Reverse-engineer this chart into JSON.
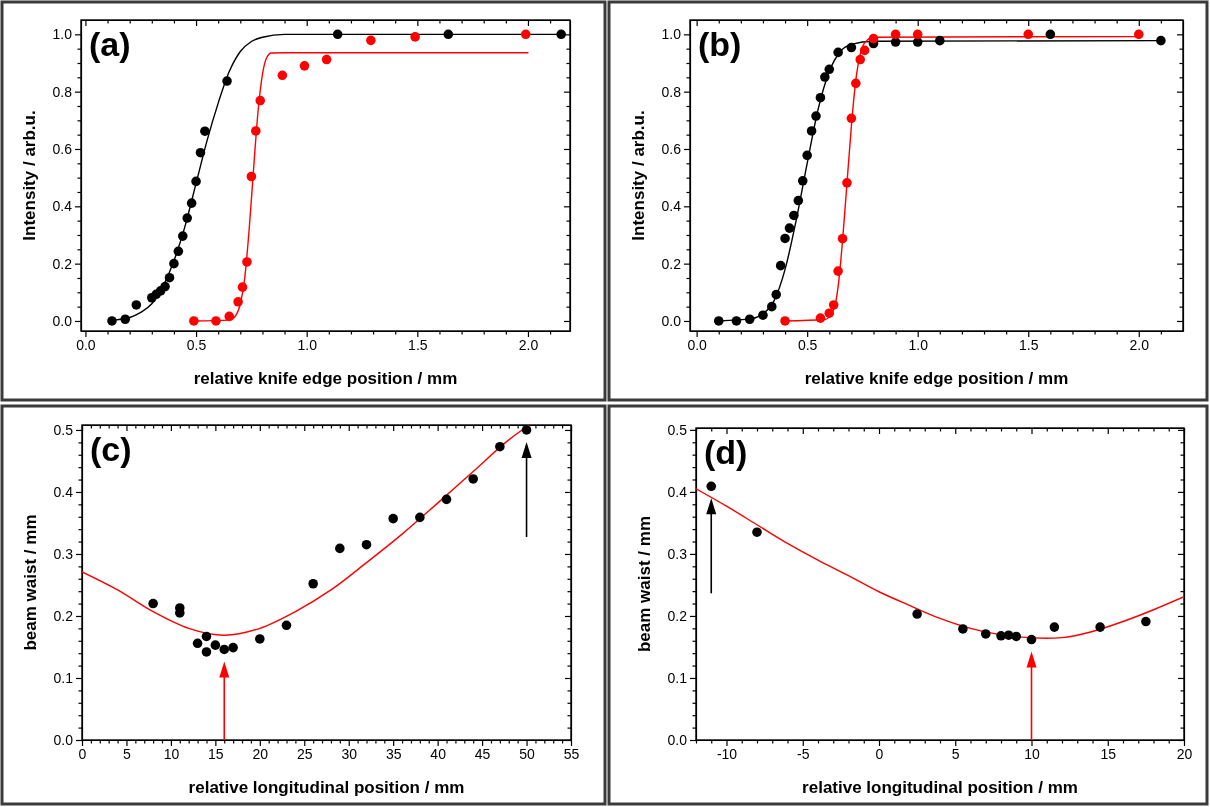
{
  "chart_data": [
    {
      "type": "scatter",
      "title": "(a)",
      "xlabel": "relative knife edge position / mm",
      "ylabel": "Intensity / arb.u.",
      "xlim": [
        -0.02,
        2.19
      ],
      "ylim": [
        -0.035,
        1.05
      ],
      "xticks": [
        {
          "value": 0,
          "label": "0.0"
        },
        {
          "value": 0.1,
          "label": null
        },
        {
          "value": 0.2,
          "label": null
        },
        {
          "value": 0.3,
          "label": null
        },
        {
          "value": 0.4,
          "label": null
        },
        {
          "value": 0.5,
          "label": "0.5"
        },
        {
          "value": 0.6,
          "label": null
        },
        {
          "value": 0.7,
          "label": null
        },
        {
          "value": 0.8,
          "label": null
        },
        {
          "value": 0.9,
          "label": null
        },
        {
          "value": 1.0,
          "label": "1.0"
        },
        {
          "value": 1.1,
          "label": null
        },
        {
          "value": 1.2,
          "label": null
        },
        {
          "value": 1.3,
          "label": null
        },
        {
          "value": 1.4,
          "label": null
        },
        {
          "value": 1.5,
          "label": "1.5"
        },
        {
          "value": 1.6,
          "label": null
        },
        {
          "value": 1.7,
          "label": null
        },
        {
          "value": 1.8,
          "label": null
        },
        {
          "value": 1.9,
          "label": null
        },
        {
          "value": 2.0,
          "label": "2.0"
        },
        {
          "value": 2.1,
          "label": null
        }
      ],
      "yticks": [
        {
          "value": 0,
          "label": "0.0"
        },
        {
          "value": 0.05,
          "label": null
        },
        {
          "value": 0.1,
          "label": null
        },
        {
          "value": 0.15,
          "label": null
        },
        {
          "value": 0.2,
          "label": "0.2"
        },
        {
          "value": 0.25,
          "label": null
        },
        {
          "value": 0.3,
          "label": null
        },
        {
          "value": 0.35,
          "label": null
        },
        {
          "value": 0.4,
          "label": "0.4"
        },
        {
          "value": 0.45,
          "label": null
        },
        {
          "value": 0.5,
          "label": null
        },
        {
          "value": 0.55,
          "label": null
        },
        {
          "value": 0.6,
          "label": "0.6"
        },
        {
          "value": 0.65,
          "label": null
        },
        {
          "value": 0.7,
          "label": null
        },
        {
          "value": 0.75,
          "label": null
        },
        {
          "value": 0.8,
          "label": "0.8"
        },
        {
          "value": 0.85,
          "label": null
        },
        {
          "value": 0.9,
          "label": null
        },
        {
          "value": 0.95,
          "label": null
        },
        {
          "value": 1.0,
          "label": "1.0"
        }
      ],
      "series": [
        {
          "type": "line",
          "color": "#000000",
          "x": [
            0.13,
            0.2,
            0.25,
            0.3,
            0.35,
            0.4,
            0.45,
            0.5,
            0.55,
            0.6,
            0.65,
            0.7,
            0.75,
            0.8,
            0.9,
            2.15
          ],
          "values": [
            0.003,
            0.012,
            0.03,
            0.06,
            0.12,
            0.21,
            0.33,
            0.48,
            0.63,
            0.76,
            0.87,
            0.94,
            0.975,
            0.99,
            1.0,
            1.0
          ]
        },
        {
          "type": "line",
          "color": "#ff0000",
          "x": [
            0.49,
            0.65,
            0.68,
            0.7,
            0.72,
            0.74,
            0.76,
            0.78,
            0.8,
            0.82,
            0.84,
            0.9,
            2.0
          ],
          "values": [
            0.0,
            0.003,
            0.02,
            0.06,
            0.15,
            0.32,
            0.53,
            0.73,
            0.86,
            0.92,
            0.935,
            0.936,
            0.936
          ]
        },
        {
          "marker": "circle",
          "color": "#000000",
          "x": [
            0.12,
            0.18,
            0.23,
            0.3,
            0.32,
            0.34,
            0.36,
            0.38,
            0.4,
            0.42,
            0.44,
            0.46,
            0.48,
            0.5,
            0.52,
            0.54,
            0.64,
            1.14,
            1.64,
            2.15
          ],
          "values": [
            0.0,
            0.006,
            0.056,
            0.081,
            0.093,
            0.105,
            0.12,
            0.151,
            0.2,
            0.243,
            0.296,
            0.359,
            0.411,
            0.487,
            0.587,
            0.662,
            0.837,
            1.0,
            1.0,
            1.0
          ]
        },
        {
          "marker": "circle",
          "color": "#ff0000",
          "x": [
            0.49,
            0.59,
            0.65,
            0.69,
            0.71,
            0.73,
            0.75,
            0.77,
            0.79,
            0.89,
            0.99,
            1.09,
            1.29,
            1.49,
            1.99
          ],
          "values": [
            0.0,
            0.0,
            0.016,
            0.067,
            0.118,
            0.206,
            0.504,
            0.663,
            0.769,
            0.857,
            0.89,
            0.912,
            0.979,
            0.991,
            1.0
          ]
        }
      ]
    },
    {
      "type": "scatter",
      "title": "(b)",
      "xlabel": "relative knife edge position / mm",
      "ylabel": "Intensity / arb.u.",
      "xlim": [
        -0.03,
        2.2
      ],
      "ylim": [
        -0.035,
        1.05
      ],
      "xticks": [
        {
          "value": 0,
          "label": "0.0"
        },
        {
          "value": 0.1,
          "label": null
        },
        {
          "value": 0.2,
          "label": null
        },
        {
          "value": 0.3,
          "label": null
        },
        {
          "value": 0.4,
          "label": null
        },
        {
          "value": 0.5,
          "label": "0.5"
        },
        {
          "value": 0.6,
          "label": null
        },
        {
          "value": 0.7,
          "label": null
        },
        {
          "value": 0.8,
          "label": null
        },
        {
          "value": 0.9,
          "label": null
        },
        {
          "value": 1.0,
          "label": "1.0"
        },
        {
          "value": 1.1,
          "label": null
        },
        {
          "value": 1.2,
          "label": null
        },
        {
          "value": 1.3,
          "label": null
        },
        {
          "value": 1.4,
          "label": null
        },
        {
          "value": 1.5,
          "label": "1.5"
        },
        {
          "value": 1.6,
          "label": null
        },
        {
          "value": 1.7,
          "label": null
        },
        {
          "value": 1.8,
          "label": null
        },
        {
          "value": 1.9,
          "label": null
        },
        {
          "value": 2.0,
          "label": "2.0"
        },
        {
          "value": 2.1,
          "label": null
        }
      ],
      "yticks": [
        {
          "value": 0,
          "label": "0.0"
        },
        {
          "value": 0.05,
          "label": null
        },
        {
          "value": 0.1,
          "label": null
        },
        {
          "value": 0.15,
          "label": null
        },
        {
          "value": 0.2,
          "label": "0.2"
        },
        {
          "value": 0.25,
          "label": null
        },
        {
          "value": 0.3,
          "label": null
        },
        {
          "value": 0.35,
          "label": null
        },
        {
          "value": 0.4,
          "label": "0.4"
        },
        {
          "value": 0.45,
          "label": null
        },
        {
          "value": 0.5,
          "label": null
        },
        {
          "value": 0.55,
          "label": null
        },
        {
          "value": 0.6,
          "label": "0.6"
        },
        {
          "value": 0.65,
          "label": null
        },
        {
          "value": 0.7,
          "label": null
        },
        {
          "value": 0.75,
          "label": null
        },
        {
          "value": 0.8,
          "label": "0.8"
        },
        {
          "value": 0.85,
          "label": null
        },
        {
          "value": 0.9,
          "label": null
        },
        {
          "value": 0.95,
          "label": null
        },
        {
          "value": 1.0,
          "label": "1.0"
        }
      ],
      "series": [
        {
          "type": "line",
          "color": "#000000",
          "x": [
            0.1,
            0.25,
            0.3,
            0.35,
            0.4,
            0.45,
            0.5,
            0.55,
            0.6,
            0.65,
            0.7,
            0.8,
            2.1
          ],
          "values": [
            0.0,
            0.008,
            0.025,
            0.07,
            0.18,
            0.35,
            0.55,
            0.74,
            0.87,
            0.94,
            0.965,
            0.976,
            0.978
          ]
        },
        {
          "type": "line",
          "color": "#ff0000",
          "x": [
            0.4,
            0.58,
            0.62,
            0.64,
            0.66,
            0.68,
            0.7,
            0.72,
            0.74,
            0.76,
            0.8,
            2.0
          ],
          "values": [
            0.0,
            0.005,
            0.04,
            0.12,
            0.28,
            0.48,
            0.68,
            0.84,
            0.93,
            0.97,
            0.99,
            0.992
          ]
        },
        {
          "marker": "circle",
          "color": "#000000",
          "x": [
            0.1,
            0.18,
            0.24,
            0.3,
            0.34,
            0.36,
            0.38,
            0.4,
            0.42,
            0.44,
            0.46,
            0.48,
            0.5,
            0.52,
            0.54,
            0.56,
            0.58,
            0.6,
            0.64,
            0.7,
            0.8,
            0.9,
            1.0,
            1.1,
            1.6,
            2.1
          ],
          "values": [
            0.0,
            0.0,
            0.006,
            0.02,
            0.05,
            0.092,
            0.193,
            0.288,
            0.324,
            0.368,
            0.42,
            0.489,
            0.578,
            0.663,
            0.715,
            0.779,
            0.851,
            0.878,
            0.937,
            0.954,
            0.968,
            0.973,
            0.973,
            0.978,
            1.0,
            0.978
          ]
        },
        {
          "marker": "circle",
          "color": "#ff0000",
          "x": [
            0.4,
            0.56,
            0.6,
            0.62,
            0.64,
            0.66,
            0.68,
            0.7,
            0.72,
            0.74,
            0.76,
            0.8,
            0.9,
            1.0,
            1.5,
            2.0
          ],
          "values": [
            0.0,
            0.01,
            0.027,
            0.056,
            0.174,
            0.287,
            0.482,
            0.707,
            0.829,
            0.912,
            0.944,
            0.985,
            1.0,
            1.0,
            1.0,
            1.0
          ]
        }
      ]
    },
    {
      "type": "scatter",
      "title": "(c)",
      "xlabel": "relative longitudinal position / mm",
      "ylabel": "beam waist / mm",
      "xlim": [
        0,
        55
      ],
      "ylim": [
        0,
        0.508
      ],
      "xticks": [
        {
          "value": 0,
          "label": "0"
        },
        {
          "value": 1,
          "label": null
        },
        {
          "value": 2,
          "label": null
        },
        {
          "value": 3,
          "label": null
        },
        {
          "value": 4,
          "label": null
        },
        {
          "value": 5,
          "label": "5"
        },
        {
          "value": 6,
          "label": null
        },
        {
          "value": 7,
          "label": null
        },
        {
          "value": 8,
          "label": null
        },
        {
          "value": 9,
          "label": null
        },
        {
          "value": 10,
          "label": "10"
        },
        {
          "value": 11,
          "label": null
        },
        {
          "value": 12,
          "label": null
        },
        {
          "value": 13,
          "label": null
        },
        {
          "value": 14,
          "label": null
        },
        {
          "value": 15,
          "label": "15"
        },
        {
          "value": 16,
          "label": null
        },
        {
          "value": 17,
          "label": null
        },
        {
          "value": 18,
          "label": null
        },
        {
          "value": 19,
          "label": null
        },
        {
          "value": 20,
          "label": "20"
        },
        {
          "value": 21,
          "label": null
        },
        {
          "value": 22,
          "label": null
        },
        {
          "value": 23,
          "label": null
        },
        {
          "value": 24,
          "label": null
        },
        {
          "value": 25,
          "label": "25"
        },
        {
          "value": 26,
          "label": null
        },
        {
          "value": 27,
          "label": null
        },
        {
          "value": 28,
          "label": null
        },
        {
          "value": 29,
          "label": null
        },
        {
          "value": 30,
          "label": "30"
        },
        {
          "value": 31,
          "label": null
        },
        {
          "value": 32,
          "label": null
        },
        {
          "value": 33,
          "label": null
        },
        {
          "value": 34,
          "label": null
        },
        {
          "value": 35,
          "label": "35"
        },
        {
          "value": 36,
          "label": null
        },
        {
          "value": 37,
          "label": null
        },
        {
          "value": 38,
          "label": null
        },
        {
          "value": 39,
          "label": null
        },
        {
          "value": 40,
          "label": "40"
        },
        {
          "value": 41,
          "label": null
        },
        {
          "value": 42,
          "label": null
        },
        {
          "value": 43,
          "label": null
        },
        {
          "value": 44,
          "label": null
        },
        {
          "value": 45,
          "label": "45"
        },
        {
          "value": 46,
          "label": null
        },
        {
          "value": 47,
          "label": null
        },
        {
          "value": 48,
          "label": null
        },
        {
          "value": 49,
          "label": null
        },
        {
          "value": 50,
          "label": "50"
        },
        {
          "value": 51,
          "label": null
        },
        {
          "value": 52,
          "label": null
        },
        {
          "value": 53,
          "label": null
        },
        {
          "value": 54,
          "label": null
        },
        {
          "value": 55,
          "label": "55"
        }
      ],
      "yticks": [
        {
          "value": 0,
          "label": "0.0"
        },
        {
          "value": 0.02,
          "label": null
        },
        {
          "value": 0.04,
          "label": null
        },
        {
          "value": 0.06,
          "label": null
        },
        {
          "value": 0.08,
          "label": null
        },
        {
          "value": 0.1,
          "label": "0.1"
        },
        {
          "value": 0.12,
          "label": null
        },
        {
          "value": 0.14,
          "label": null
        },
        {
          "value": 0.16,
          "label": null
        },
        {
          "value": 0.18,
          "label": null
        },
        {
          "value": 0.2,
          "label": "0.2"
        },
        {
          "value": 0.22,
          "label": null
        },
        {
          "value": 0.24,
          "label": null
        },
        {
          "value": 0.26,
          "label": null
        },
        {
          "value": 0.28,
          "label": null
        },
        {
          "value": 0.3,
          "label": "0.3"
        },
        {
          "value": 0.32,
          "label": null
        },
        {
          "value": 0.34,
          "label": null
        },
        {
          "value": 0.36,
          "label": null
        },
        {
          "value": 0.38,
          "label": null
        },
        {
          "value": 0.4,
          "label": "0.4"
        },
        {
          "value": 0.42,
          "label": null
        },
        {
          "value": 0.44,
          "label": null
        },
        {
          "value": 0.46,
          "label": null
        },
        {
          "value": 0.48,
          "label": null
        },
        {
          "value": 0.5,
          "label": "0.5"
        }
      ],
      "ref_lines": [
        {
          "axis": "x",
          "value": 16,
          "color": "#ff0000"
        },
        {
          "axis": "x",
          "value": 50,
          "color": "#000000"
        }
      ],
      "series": [
        {
          "type": "line",
          "color": "#ff0000",
          "x": [
            0,
            4,
            8,
            12,
            16,
            20,
            24,
            28,
            32,
            36,
            40,
            44,
            48,
            50.3
          ],
          "values": [
            0.271,
            0.242,
            0.207,
            0.18,
            0.169,
            0.18,
            0.207,
            0.242,
            0.286,
            0.332,
            0.382,
            0.433,
            0.484,
            0.508
          ]
        },
        {
          "marker": "circle",
          "color": "#000000",
          "x": [
            8,
            11,
            11,
            13,
            14,
            14,
            15,
            16,
            17,
            20,
            23,
            26,
            29,
            32,
            35,
            38,
            41,
            44,
            47,
            50
          ],
          "values": [
            0.22,
            0.213,
            0.205,
            0.156,
            0.167,
            0.142,
            0.153,
            0.146,
            0.149,
            0.163,
            0.185,
            0.252,
            0.309,
            0.315,
            0.357,
            0.359,
            0.388,
            0.421,
            0.473,
            0.5
          ]
        }
      ]
    },
    {
      "type": "scatter",
      "title": "(d)",
      "xlabel": "relative longitudinal position / mm",
      "ylabel": "beam waist / mm",
      "xlim": [
        -12,
        20
      ],
      "ylim": [
        0,
        0.503
      ],
      "xticks": [
        {
          "value": -12,
          "label": null
        },
        {
          "value": -11,
          "label": null
        },
        {
          "value": -10,
          "label": "-10"
        },
        {
          "value": -9,
          "label": null
        },
        {
          "value": -8,
          "label": null
        },
        {
          "value": -7,
          "label": null
        },
        {
          "value": -6,
          "label": null
        },
        {
          "value": -5,
          "label": "-5"
        },
        {
          "value": -4,
          "label": null
        },
        {
          "value": -3,
          "label": null
        },
        {
          "value": -2,
          "label": null
        },
        {
          "value": -1,
          "label": null
        },
        {
          "value": 0,
          "label": "0"
        },
        {
          "value": 1,
          "label": null
        },
        {
          "value": 2,
          "label": null
        },
        {
          "value": 3,
          "label": null
        },
        {
          "value": 4,
          "label": null
        },
        {
          "value": 5,
          "label": "5"
        },
        {
          "value": 6,
          "label": null
        },
        {
          "value": 7,
          "label": null
        },
        {
          "value": 8,
          "label": null
        },
        {
          "value": 9,
          "label": null
        },
        {
          "value": 10,
          "label": "10"
        },
        {
          "value": 11,
          "label": null
        },
        {
          "value": 12,
          "label": null
        },
        {
          "value": 13,
          "label": null
        },
        {
          "value": 14,
          "label": null
        },
        {
          "value": 15,
          "label": "15"
        },
        {
          "value": 16,
          "label": null
        },
        {
          "value": 17,
          "label": null
        },
        {
          "value": 18,
          "label": null
        },
        {
          "value": 19,
          "label": null
        },
        {
          "value": 20,
          "label": "20"
        }
      ],
      "yticks": [
        {
          "value": 0,
          "label": "0.0"
        },
        {
          "value": 0.02,
          "label": null
        },
        {
          "value": 0.04,
          "label": null
        },
        {
          "value": 0.06,
          "label": null
        },
        {
          "value": 0.08,
          "label": null
        },
        {
          "value": 0.1,
          "label": "0.1"
        },
        {
          "value": 0.12,
          "label": null
        },
        {
          "value": 0.14,
          "label": null
        },
        {
          "value": 0.16,
          "label": null
        },
        {
          "value": 0.18,
          "label": null
        },
        {
          "value": 0.2,
          "label": "0.2"
        },
        {
          "value": 0.22,
          "label": null
        },
        {
          "value": 0.24,
          "label": null
        },
        {
          "value": 0.26,
          "label": null
        },
        {
          "value": 0.28,
          "label": null
        },
        {
          "value": 0.3,
          "label": "0.3"
        },
        {
          "value": 0.32,
          "label": null
        },
        {
          "value": 0.34,
          "label": null
        },
        {
          "value": 0.36,
          "label": null
        },
        {
          "value": 0.38,
          "label": null
        },
        {
          "value": 0.4,
          "label": "0.4"
        },
        {
          "value": 0.42,
          "label": null
        },
        {
          "value": 0.44,
          "label": null
        },
        {
          "value": 0.46,
          "label": null
        },
        {
          "value": 0.48,
          "label": null
        },
        {
          "value": 0.5,
          "label": "0.5"
        }
      ],
      "ref_lines": [
        {
          "axis": "x",
          "value": -11,
          "color": "#000000"
        },
        {
          "axis": "x",
          "value": 10,
          "color": "#ff0000"
        }
      ],
      "series": [
        {
          "type": "line",
          "color": "#ff0000",
          "x": [
            -12,
            -10,
            -8,
            -6,
            -4,
            -2,
            0,
            2,
            4,
            6,
            11,
            12,
            14,
            16,
            18,
            20
          ],
          "values": [
            0.405,
            0.377,
            0.347,
            0.317,
            0.29,
            0.265,
            0.239,
            0.217,
            0.196,
            0.18,
            0.164,
            0.165,
            0.175,
            0.191,
            0.21,
            0.231
          ]
        },
        {
          "marker": "circle",
          "color": "#000000",
          "x": [
            -11,
            -8,
            2.5,
            5.5,
            7,
            8,
            8.5,
            9,
            10,
            11.5,
            14.5,
            17.5
          ],
          "values": [
            0.409,
            0.335,
            0.203,
            0.179,
            0.171,
            0.168,
            0.169,
            0.167,
            0.162,
            0.182,
            0.182,
            0.191
          ]
        }
      ]
    }
  ]
}
